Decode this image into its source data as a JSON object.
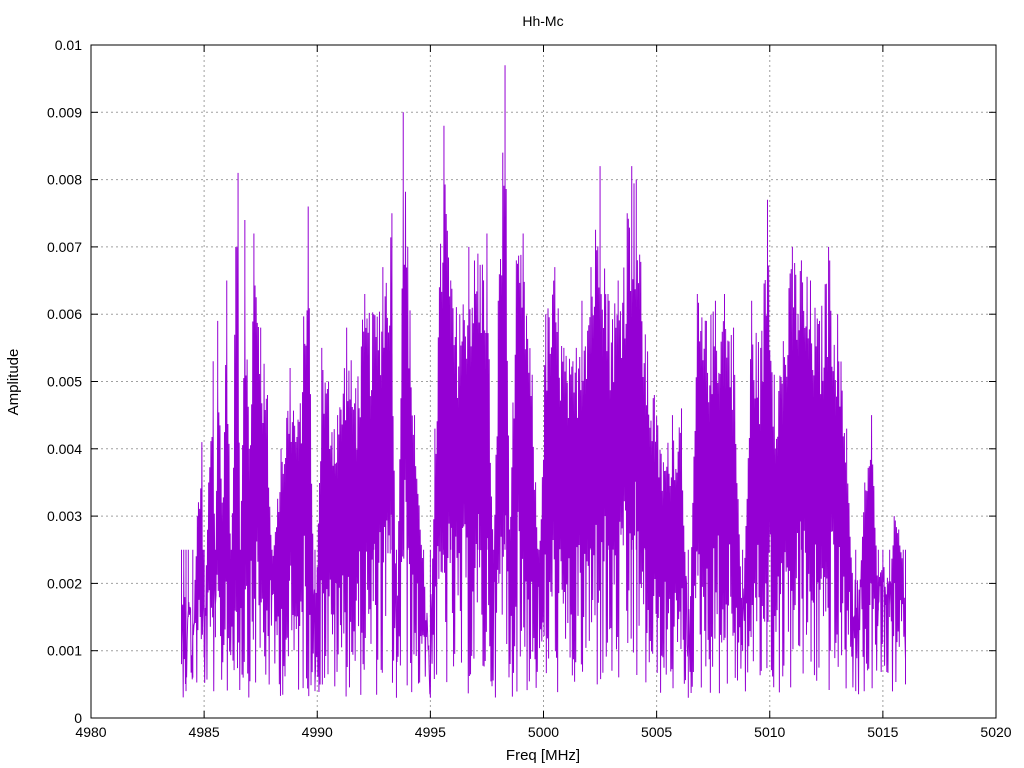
{
  "chart_data": {
    "type": "line",
    "title": "Hh-Mc",
    "xlabel": "Freq [MHz]",
    "ylabel": "Amplitude",
    "xlim": [
      4980,
      5020
    ],
    "ylim": [
      0,
      0.01
    ],
    "x_ticks": [
      "4980",
      "4985",
      "4990",
      "4995",
      "5000",
      "5005",
      "5010",
      "5015",
      "5020"
    ],
    "y_ticks": [
      "0",
      "0.001",
      "0.002",
      "0.003",
      "0.004",
      "0.005",
      "0.006",
      "0.007",
      "0.008",
      "0.009",
      "0.01"
    ],
    "grid": true,
    "legend": "none",
    "line_color": "#9400d3",
    "series": [
      {
        "x_start": 4984.0,
        "x_end": 5016.0,
        "approx_point_count": 1280,
        "values_description_points": [
          [
            4984.0,
            0.0008
          ],
          [
            4984.1,
            0.0022
          ],
          [
            4984.2,
            0.0004
          ],
          [
            4984.3,
            0.0015
          ],
          [
            4984.5,
            0.0006
          ],
          [
            4984.7,
            0.003
          ],
          [
            4984.9,
            0.0041
          ],
          [
            4985.0,
            0.0009
          ],
          [
            4985.2,
            0.0035
          ],
          [
            4985.4,
            0.0053
          ],
          [
            4985.5,
            0.0012
          ],
          [
            4985.6,
            0.0059
          ],
          [
            4985.8,
            0.0032
          ],
          [
            4986.0,
            0.0065
          ],
          [
            4986.2,
            0.0018
          ],
          [
            4986.4,
            0.007
          ],
          [
            4986.5,
            0.0081
          ],
          [
            4986.6,
            0.0022
          ],
          [
            4986.8,
            0.0074
          ],
          [
            4987.0,
            0.004
          ],
          [
            4987.2,
            0.0072
          ],
          [
            4987.5,
            0.0058
          ],
          [
            4987.8,
            0.0048
          ],
          [
            4988.0,
            0.0021
          ],
          [
            4988.4,
            0.004
          ],
          [
            4988.8,
            0.0052
          ],
          [
            4989.2,
            0.0044
          ],
          [
            4989.6,
            0.0076
          ],
          [
            4989.9,
            0.0004
          ],
          [
            4990.2,
            0.0055
          ],
          [
            4990.5,
            0.005
          ],
          [
            4990.9,
            0.0045
          ],
          [
            4991.3,
            0.0058
          ],
          [
            4991.7,
            0.0049
          ],
          [
            4992.1,
            0.0063
          ],
          [
            4992.5,
            0.006
          ],
          [
            4992.9,
            0.0067
          ],
          [
            4993.3,
            0.0075
          ],
          [
            4993.5,
            0.0003
          ],
          [
            4993.8,
            0.009
          ],
          [
            4994.0,
            0.007
          ],
          [
            4994.3,
            0.0045
          ],
          [
            4994.7,
            0.002
          ],
          [
            4995.0,
            0.0003
          ],
          [
            4995.2,
            0.0043
          ],
          [
            4995.6,
            0.0088
          ],
          [
            4995.9,
            0.0065
          ],
          [
            4996.3,
            0.006
          ],
          [
            4996.7,
            0.007
          ],
          [
            4997.1,
            0.0069
          ],
          [
            4997.5,
            0.0072
          ],
          [
            4997.8,
            0.002
          ],
          [
            4998.0,
            0.0062
          ],
          [
            4998.2,
            0.0084
          ],
          [
            4998.3,
            0.0097
          ],
          [
            4998.5,
            0.0028
          ],
          [
            4998.8,
            0.0068
          ],
          [
            4999.1,
            0.0072
          ],
          [
            4999.5,
            0.0051
          ],
          [
            4999.8,
            0.002
          ],
          [
            5000.1,
            0.006
          ],
          [
            5000.5,
            0.0067
          ],
          [
            5000.9,
            0.0055
          ],
          [
            5001.3,
            0.0053
          ],
          [
            5001.7,
            0.0062
          ],
          [
            5002.1,
            0.0067
          ],
          [
            5002.5,
            0.0082
          ],
          [
            5002.9,
            0.0062
          ],
          [
            5003.3,
            0.0065
          ],
          [
            5003.7,
            0.0075
          ],
          [
            5003.9,
            0.0082
          ],
          [
            5004.1,
            0.008
          ],
          [
            5004.5,
            0.0057
          ],
          [
            5004.9,
            0.0048
          ],
          [
            5005.3,
            0.0038
          ],
          [
            5005.7,
            0.0045
          ],
          [
            5006.1,
            0.0046
          ],
          [
            5006.4,
            0.0003
          ],
          [
            5006.8,
            0.0063
          ],
          [
            5007.2,
            0.0059
          ],
          [
            5007.6,
            0.0062
          ],
          [
            5008.0,
            0.0063
          ],
          [
            5008.4,
            0.0058
          ],
          [
            5008.8,
            0.001
          ],
          [
            5009.2,
            0.0062
          ],
          [
            5009.6,
            0.0055
          ],
          [
            5009.9,
            0.0077
          ],
          [
            5010.2,
            0.0051
          ],
          [
            5010.6,
            0.0056
          ],
          [
            5011.0,
            0.007
          ],
          [
            5011.4,
            0.0068
          ],
          [
            5011.8,
            0.0065
          ],
          [
            5012.2,
            0.0059
          ],
          [
            5012.6,
            0.007
          ],
          [
            5013.0,
            0.006
          ],
          [
            5013.4,
            0.0043
          ],
          [
            5013.8,
            0.0004
          ],
          [
            5014.2,
            0.0035
          ],
          [
            5014.5,
            0.0045
          ],
          [
            5014.8,
            0.0016
          ],
          [
            5015.0,
            0.0021
          ],
          [
            5015.3,
            0.0015
          ],
          [
            5015.5,
            0.003
          ],
          [
            5015.7,
            0.0028
          ],
          [
            5015.9,
            0.0021
          ],
          [
            5016.0,
            0.0005
          ]
        ]
      }
    ]
  }
}
